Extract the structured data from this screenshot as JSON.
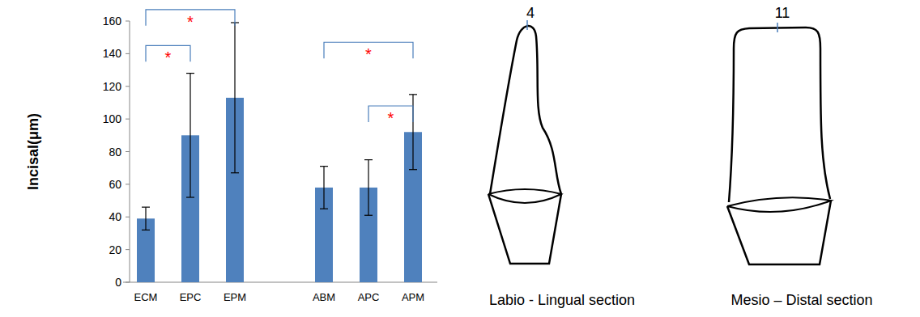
{
  "chart_data": {
    "type": "bar",
    "categories": [
      "ECM",
      "EPC",
      "EPM",
      null,
      "ABM",
      "APC",
      "APM"
    ],
    "values": [
      39,
      90,
      113,
      null,
      58,
      58,
      92
    ],
    "errors": [
      7,
      38,
      46,
      null,
      13,
      17,
      23
    ],
    "color": "#4f81bd",
    "ylabel": "Incisal(μm)",
    "ylim": [
      0,
      160
    ],
    "yticks": [
      0,
      20,
      40,
      60,
      80,
      100,
      120,
      140,
      160
    ],
    "grid": false,
    "annotations": [
      {
        "from": 0,
        "to": 2,
        "y": 167,
        "text": "*"
      },
      {
        "from": 0,
        "to": 1,
        "y": 145,
        "text": "*"
      },
      {
        "from": 4,
        "to": 6,
        "y": 147,
        "text": "*"
      },
      {
        "from": 5,
        "to": 6,
        "y": 108,
        "text": "*"
      }
    ]
  },
  "diagram": {
    "sections": [
      {
        "point": "4",
        "caption": "Labio - Lingual section"
      },
      {
        "point": "11",
        "caption": "Mesio – Distal section"
      }
    ]
  }
}
